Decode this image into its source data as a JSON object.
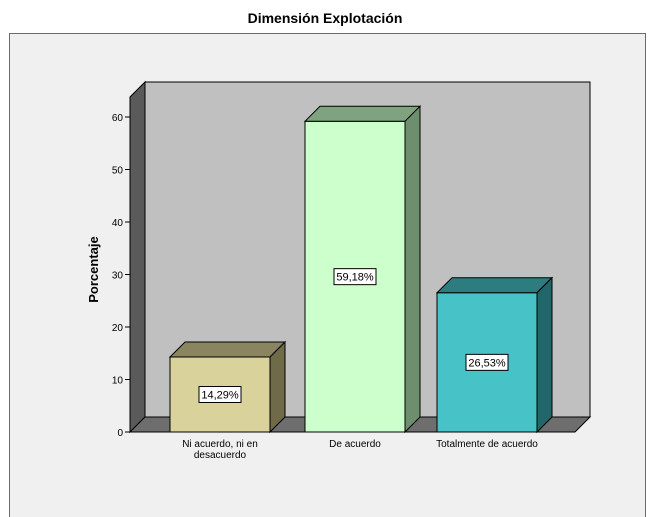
{
  "chart_data": {
    "type": "bar",
    "title": "Dimensión Explotación",
    "ylabel": "Porcentaje",
    "xlabel": "",
    "ylim": [
      0,
      60
    ],
    "yticks": [
      0,
      10,
      20,
      30,
      40,
      50,
      60
    ],
    "categories": [
      [
        "Ni acuerdo, ni en",
        "desacuerdo"
      ],
      [
        "De acuerdo"
      ],
      [
        "Totalmente de acuerdo"
      ]
    ],
    "values": [
      14.29,
      59.18,
      26.53
    ],
    "data_labels": [
      "14,29%",
      "59,18%",
      "26,53%"
    ],
    "colors": {
      "front": [
        "#d9d29b",
        "#ccffcc",
        "#47c2c7"
      ],
      "top": [
        "#8a8460",
        "#7fa37f",
        "#2d7c80"
      ],
      "side": [
        "#6f6a48",
        "#6d8f6d",
        "#23666a"
      ]
    },
    "grid": false,
    "legend": "none",
    "style": "3d"
  }
}
